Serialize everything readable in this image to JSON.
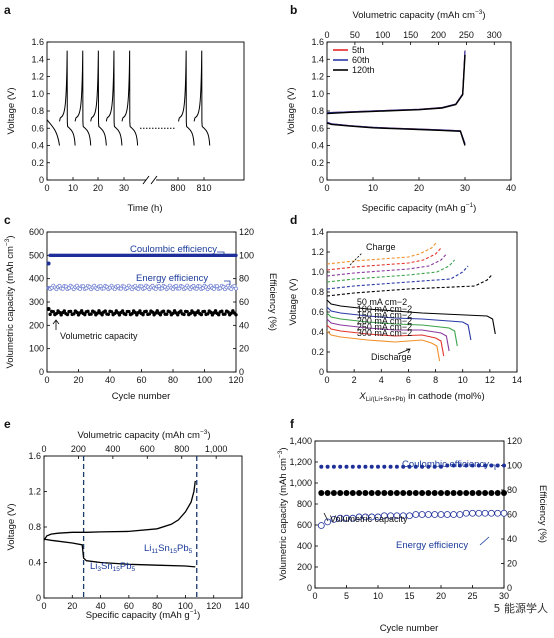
{
  "watermark": "5 能源学人",
  "chart_data": [
    {
      "panel": "a",
      "type": "line",
      "xlabel": "Time (h)",
      "ylabel": "Voltage (V)",
      "ylim": [
        0,
        1.6
      ],
      "xticks": [
        "0",
        "10",
        "20",
        "30",
        "800",
        "810"
      ],
      "yticks": [
        "0",
        "0.2",
        "0.4",
        "0.6",
        "0.8",
        "1.0",
        "1.2",
        "1.4",
        "1.6"
      ],
      "axis_break": [
        30,
        800
      ],
      "profile": {
        "discharge_start_V": 0.62,
        "discharge_end_V": 0.4,
        "charge_start_V": 0.72,
        "charge_end_V": 1.5,
        "cycle_hours": 6.1
      }
    },
    {
      "panel": "b",
      "type": "line",
      "xlabel": "Specific capacity (mAh g−1)",
      "x2label": "Volumetric capacity (mAh cm−3)",
      "ylabel": "Voltage (V)",
      "xlim": [
        0,
        40
      ],
      "x2lim": [
        0,
        330
      ],
      "ylim": [
        0,
        1.6
      ],
      "xticks": [
        "0",
        "10",
        "20",
        "30",
        "40"
      ],
      "x2ticks": [
        "0",
        "50",
        "100",
        "150",
        "200",
        "250",
        "300"
      ],
      "yticks": [
        "0",
        "0.2",
        "0.4",
        "0.6",
        "0.8",
        "1.0",
        "1.2",
        "1.4",
        "1.6"
      ],
      "legend": "top-left",
      "series": [
        {
          "name": "5th",
          "color": "#e4262c",
          "charge": {
            "x": [
              0,
              5,
              10,
              15,
              20,
              25,
              28,
              29.5,
              30
            ],
            "y": [
              0.78,
              0.79,
              0.8,
              0.81,
              0.82,
              0.84,
              0.88,
              1.0,
              1.5
            ]
          },
          "discharge": {
            "x": [
              0,
              1,
              5,
              10,
              15,
              20,
              25,
              29,
              30
            ],
            "y": [
              0.67,
              0.65,
              0.63,
              0.61,
              0.6,
              0.59,
              0.58,
              0.57,
              0.42
            ]
          }
        },
        {
          "name": "60th",
          "color": "#2b3aa8",
          "charge": {
            "x": [
              0,
              5,
              10,
              15,
              20,
              25,
              28,
              29.5,
              30
            ],
            "y": [
              0.78,
              0.79,
              0.8,
              0.81,
              0.82,
              0.84,
              0.88,
              1.0,
              1.5
            ]
          },
          "discharge": {
            "x": [
              0,
              1,
              5,
              10,
              15,
              20,
              25,
              29,
              30
            ],
            "y": [
              0.67,
              0.65,
              0.63,
              0.61,
              0.6,
              0.59,
              0.58,
              0.57,
              0.42
            ]
          }
        },
        {
          "name": "120th",
          "color": "#000000",
          "charge": {
            "x": [
              0,
              5,
              10,
              15,
              20,
              25,
              28,
              29.5,
              30
            ],
            "y": [
              0.77,
              0.785,
              0.795,
              0.805,
              0.815,
              0.835,
              0.875,
              0.99,
              1.45
            ]
          },
          "discharge": {
            "x": [
              0,
              1,
              5,
              10,
              15,
              20,
              25,
              29,
              30
            ],
            "y": [
              0.66,
              0.645,
              0.625,
              0.605,
              0.595,
              0.585,
              0.575,
              0.565,
              0.4
            ]
          }
        }
      ]
    },
    {
      "panel": "c",
      "type": "scatter",
      "xlabel": "Cycle number",
      "ylabel": "Volumetric capacity (mAh cm−3)",
      "y2label": "Efficiency (%)",
      "xlim": [
        0,
        120
      ],
      "ylim": [
        0,
        600
      ],
      "y2lim": [
        0,
        120
      ],
      "xticks": [
        "0",
        "20",
        "40",
        "60",
        "80",
        "100",
        "120"
      ],
      "yticks": [
        "0",
        "100",
        "200",
        "300",
        "400",
        "500",
        "600"
      ],
      "y2ticks": [
        "0",
        "20",
        "40",
        "60",
        "80",
        "100",
        "120"
      ],
      "annotations": [
        "Coulombic efficiency",
        "Energy efficiency",
        "Volumetric capacity"
      ],
      "series": [
        {
          "name": "Coulombic efficiency",
          "axis": "right",
          "color": "#1f2f9a",
          "first": [
            1,
            93
          ],
          "x_range": [
            2,
            120
          ],
          "value": 100
        },
        {
          "name": "Energy efficiency",
          "axis": "right",
          "color": "#6f7fd0",
          "first": [
            1,
            72
          ],
          "x_range": [
            2,
            120
          ],
          "value": [
            71,
            74
          ]
        },
        {
          "name": "Volumetric capacity",
          "axis": "left",
          "color": "#000000",
          "first": [
            1,
            270
          ],
          "x_range": [
            2,
            120
          ],
          "value": [
            245,
            262
          ]
        }
      ]
    },
    {
      "panel": "d",
      "type": "line",
      "xlabel": "XLi/(Li+Sn+Pb) in cathode (mol%)",
      "ylabel": "Voltage (V)",
      "xlim": [
        0,
        14
      ],
      "ylim": [
        0,
        1.4
      ],
      "xticks": [
        "0",
        "2",
        "4",
        "6",
        "8",
        "10",
        "12",
        "14"
      ],
      "yticks": [
        "0",
        "0.2",
        "0.4",
        "0.6",
        "0.8",
        "1.0",
        "1.2",
        "1.4"
      ],
      "annotations": [
        "Charge",
        "Discharge"
      ],
      "series": [
        {
          "name": "50 mA cm−2",
          "color": "#000000",
          "end_x": 12.4,
          "discharge_V": [
            0.68,
            0.56
          ],
          "charge_V": [
            0.76,
            0.98
          ]
        },
        {
          "name": "100 mA cm−2",
          "color": "#2a39a6",
          "end_x": 10.6,
          "discharge_V": [
            0.61,
            0.5
          ],
          "charge_V": [
            0.83,
            1.06
          ]
        },
        {
          "name": "150 mA cm−2",
          "color": "#3aa34a",
          "end_x": 9.6,
          "discharge_V": [
            0.55,
            0.44
          ],
          "charge_V": [
            0.9,
            1.12
          ]
        },
        {
          "name": "200 mA cm−2",
          "color": "#8a3a9e",
          "end_x": 9.0,
          "discharge_V": [
            0.49,
            0.39
          ],
          "charge_V": [
            0.96,
            1.18
          ]
        },
        {
          "name": "250 mA cm−2",
          "color": "#e2342c",
          "end_x": 8.6,
          "discharge_V": [
            0.43,
            0.34
          ],
          "charge_V": [
            1.02,
            1.24
          ]
        },
        {
          "name": "300 mA cm−2",
          "color": "#f0902a",
          "end_x": 8.3,
          "discharge_V": [
            0.37,
            0.29
          ],
          "charge_V": [
            1.08,
            1.3
          ]
        }
      ]
    },
    {
      "panel": "e",
      "type": "line",
      "xlabel": "Specific capacity (mAh g−1)",
      "x2label": "Volumetric capacity (mAh cm−3)",
      "ylabel": "Voltage (V)",
      "xlim": [
        0,
        140
      ],
      "x2lim": [
        0,
        1150
      ],
      "ylim": [
        0,
        1.6
      ],
      "xticks": [
        "0",
        "20",
        "40",
        "60",
        "80",
        "100",
        "120",
        "140"
      ],
      "x2ticks": [
        "0",
        "200",
        "400",
        "600",
        "800",
        "1,000"
      ],
      "yticks": [
        "0",
        "0.4",
        "0.8",
        "1.2",
        "1.6"
      ],
      "annotations": [
        "Li3Sn15Pb5",
        "Li11Sn15Pb5"
      ],
      "markers_x": [
        28,
        108
      ],
      "charge": {
        "x": [
          0,
          2,
          5,
          10,
          20,
          30,
          40,
          60,
          80,
          90,
          95,
          100,
          104,
          106,
          107
        ],
        "y": [
          0.65,
          0.7,
          0.72,
          0.73,
          0.74,
          0.74,
          0.745,
          0.75,
          0.78,
          0.83,
          0.88,
          0.97,
          1.08,
          1.2,
          1.32
        ]
      },
      "discharge": {
        "x": [
          0,
          1,
          5,
          10,
          20,
          27,
          28,
          30,
          40,
          60,
          80,
          100,
          107
        ],
        "y": [
          0.67,
          0.66,
          0.65,
          0.64,
          0.62,
          0.6,
          0.45,
          0.42,
          0.4,
          0.38,
          0.37,
          0.36,
          0.35
        ]
      }
    },
    {
      "panel": "f",
      "type": "scatter",
      "xlabel": "Cycle number",
      "ylabel": "Volumetric capacity (mAh cm−3)",
      "y2label": "Efficiency (%)",
      "xlim": [
        0,
        30
      ],
      "ylim": [
        0,
        1400
      ],
      "y2lim": [
        0,
        120
      ],
      "xticks": [
        "0",
        "5",
        "10",
        "15",
        "20",
        "25",
        "30"
      ],
      "yticks": [
        "0",
        "200",
        "400",
        "600",
        "800",
        "1,000",
        "1,200",
        "1,400"
      ],
      "y2ticks": [
        "0",
        "20",
        "40",
        "60",
        "80",
        "100",
        "120"
      ],
      "annotations": [
        "Coulombic efficiency",
        "Volumetric capacity",
        "Energy efficiency"
      ],
      "x": [
        1,
        2,
        3,
        4,
        5,
        6,
        7,
        8,
        9,
        10,
        11,
        12,
        13,
        14,
        15,
        16,
        17,
        18,
        19,
        20,
        21,
        22,
        23,
        24,
        25,
        26,
        27,
        28,
        29,
        30
      ],
      "series": [
        {
          "name": "Coulombic efficiency",
          "axis": "right",
          "color": "#1f2f9a",
          "values": [
            99,
            99,
            99,
            99,
            99,
            99,
            99,
            99,
            99,
            99,
            99,
            99,
            99,
            99,
            99,
            99,
            99,
            99,
            99,
            99,
            100,
            100,
            100,
            100,
            100,
            100,
            100,
            100,
            100,
            100
          ]
        },
        {
          "name": "Volumetric capacity",
          "axis": "left",
          "color": "#000000",
          "values": [
            905,
            905,
            905,
            905,
            905,
            905,
            905,
            905,
            905,
            905,
            905,
            905,
            905,
            905,
            905,
            905,
            905,
            905,
            905,
            905,
            905,
            905,
            905,
            905,
            905,
            905,
            905,
            905,
            905,
            905
          ]
        },
        {
          "name": "Energy efficiency",
          "axis": "right",
          "color": "#1f2f9a",
          "values": [
            51,
            54,
            56,
            57,
            57,
            57,
            58,
            58,
            58,
            58,
            59,
            59,
            59,
            59,
            59,
            60,
            60,
            60,
            60,
            60,
            60,
            60,
            60,
            61,
            61,
            61,
            61,
            61,
            61,
            61
          ]
        }
      ]
    }
  ]
}
